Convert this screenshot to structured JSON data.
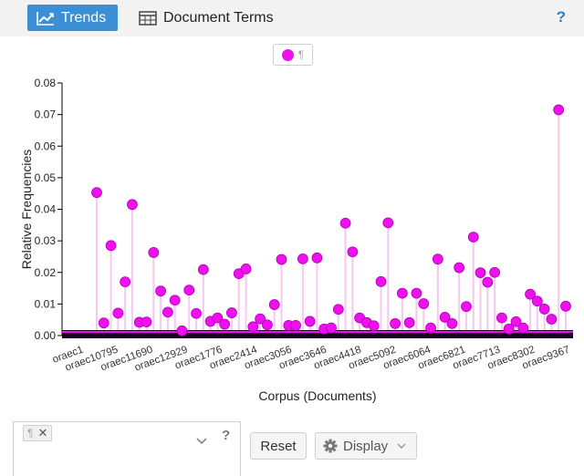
{
  "toolbar": {
    "tabs": [
      {
        "label": "Trends",
        "icon": "line-chart-icon",
        "active": true
      },
      {
        "label": "Document Terms",
        "icon": "table-icon",
        "active": false
      }
    ],
    "help_label": "?"
  },
  "legend": {
    "label": "¶",
    "color": "#ee11ee"
  },
  "chart_data": {
    "type": "scatter",
    "xlabel": "Corpus (Documents)",
    "ylabel": "Relative Frequencies",
    "ylim": [
      0,
      0.08
    ],
    "yticks": [
      "0.00",
      "0.01",
      "0.02",
      "0.03",
      "0.04",
      "0.05",
      "0.06",
      "0.07",
      "0.08"
    ],
    "tick_labels": [
      "oraec1",
      "oraec10795",
      "oraec11690",
      "oraec12929",
      "oraec1776",
      "oraec2414",
      "oraec3056",
      "oraec3646",
      "oraec4418",
      "oraec5092",
      "oraec6064",
      "oraec6821",
      "oraec7713",
      "oraec8302",
      "oraec9367"
    ],
    "series": [
      {
        "name": "¶",
        "color": "#ee11ee",
        "values": [
          0.0453,
          0.004,
          0.0285,
          0.0071,
          0.017,
          0.0415,
          0.0042,
          0.0043,
          0.0263,
          0.0141,
          0.0074,
          0.0112,
          0.0015,
          0.0144,
          0.007,
          0.0209,
          0.0045,
          0.0056,
          0.0036,
          0.0072,
          0.0196,
          0.0211,
          0.0028,
          0.0053,
          0.0034,
          0.0098,
          0.0241,
          0.0032,
          0.0032,
          0.0243,
          0.0045,
          0.0246,
          0.0021,
          0.0024,
          0.0083,
          0.0356,
          0.0265,
          0.0056,
          0.0041,
          0.0031,
          0.0171,
          0.0357,
          0.0038,
          0.0134,
          0.0041,
          0.0134,
          0.0101,
          0.0024,
          0.0242,
          0.0058,
          0.0038,
          0.0215,
          0.0092,
          0.0312,
          0.0199,
          0.0169,
          0.02,
          0.0056,
          0.0021,
          0.0044,
          0.0024,
          0.0131,
          0.0109,
          0.0084,
          0.0052,
          0.0715,
          0.0093
        ]
      }
    ]
  },
  "filter": {
    "tag_label": "¶",
    "tag_remove": "✕",
    "dropdown_icon": "chevron-down-icon",
    "help_label": "?"
  },
  "buttons": {
    "reset_label": "Reset",
    "display_label": "Display",
    "display_icon": "gear-icon"
  }
}
